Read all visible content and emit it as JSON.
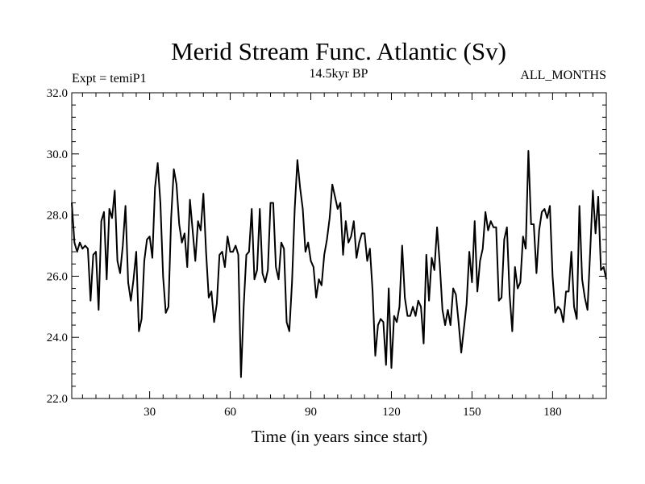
{
  "chart_data": {
    "type": "line",
    "title": "Merid Stream Func. Atlantic (Sv)",
    "left_label": "Expt = temiP1",
    "center_label": "14.5kyr BP",
    "right_label": "ALL_MONTHS",
    "xlabel": "Time (in years since start)",
    "ylabel": "",
    "xlim": [
      1,
      200
    ],
    "ylim": [
      22.0,
      32.0
    ],
    "xticks": [
      30,
      60,
      90,
      120,
      150,
      180
    ],
    "xtick_labels": [
      "30",
      "60",
      "90",
      "120",
      "150",
      "180"
    ],
    "yticks": [
      22,
      24,
      26,
      28,
      30,
      32
    ],
    "ytick_labels": [
      "22.0",
      "24.0",
      "26.0",
      "28.0",
      "30.0",
      "32.0"
    ],
    "grid": false,
    "series": [
      {
        "name": "Merid Stream Func. Atlantic",
        "color": "#000000",
        "x": [
          1,
          2,
          3,
          4,
          5,
          6,
          7,
          8,
          9,
          10,
          11,
          12,
          13,
          14,
          15,
          16,
          17,
          18,
          19,
          20,
          21,
          22,
          23,
          24,
          25,
          26,
          27,
          28,
          29,
          30,
          31,
          32,
          33,
          34,
          35,
          36,
          37,
          38,
          39,
          40,
          41,
          42,
          43,
          44,
          45,
          46,
          47,
          48,
          49,
          50,
          51,
          52,
          53,
          54,
          55,
          56,
          57,
          58,
          59,
          60,
          61,
          62,
          63,
          64,
          65,
          66,
          67,
          68,
          69,
          70,
          71,
          72,
          73,
          74,
          75,
          76,
          77,
          78,
          79,
          80,
          81,
          82,
          83,
          84,
          85,
          86,
          87,
          88,
          89,
          90,
          91,
          92,
          93,
          94,
          95,
          96,
          97,
          98,
          99,
          100,
          101,
          102,
          103,
          104,
          105,
          106,
          107,
          108,
          109,
          110,
          111,
          112,
          113,
          114,
          115,
          116,
          117,
          118,
          119,
          120,
          121,
          122,
          123,
          124,
          125,
          126,
          127,
          128,
          129,
          130,
          131,
          132,
          133,
          134,
          135,
          136,
          137,
          138,
          139,
          140,
          141,
          142,
          143,
          144,
          145,
          146,
          147,
          148,
          149,
          150,
          151,
          152,
          153,
          154,
          155,
          156,
          157,
          158,
          159,
          160,
          161,
          162,
          163,
          164,
          165,
          166,
          167,
          168,
          169,
          170,
          171,
          172,
          173,
          174,
          175,
          176,
          177,
          178,
          179,
          180,
          181,
          182,
          183,
          184,
          185,
          186,
          187,
          188,
          189,
          190,
          191,
          192,
          193,
          194,
          195,
          196,
          197,
          198,
          199,
          200
        ],
        "values": [
          28.4,
          27.1,
          26.8,
          27.1,
          26.9,
          27.0,
          26.9,
          25.2,
          26.7,
          26.8,
          24.9,
          27.8,
          28.1,
          25.9,
          28.2,
          27.9,
          28.8,
          26.5,
          26.1,
          27.0,
          28.3,
          25.8,
          25.2,
          25.9,
          26.8,
          24.2,
          24.6,
          26.5,
          27.2,
          27.3,
          26.6,
          28.9,
          29.7,
          28.4,
          26.0,
          24.8,
          25.0,
          27.9,
          29.5,
          29.0,
          27.7,
          27.1,
          27.4,
          26.3,
          28.5,
          27.5,
          26.5,
          27.8,
          27.5,
          28.7,
          26.8,
          25.3,
          25.5,
          24.5,
          25.1,
          26.7,
          26.8,
          26.3,
          27.3,
          26.8,
          26.8,
          27.0,
          26.7,
          22.7,
          25.0,
          26.7,
          26.8,
          28.2,
          25.9,
          26.2,
          28.2,
          26.1,
          25.8,
          26.2,
          28.4,
          28.4,
          26.3,
          25.9,
          27.1,
          26.9,
          24.5,
          24.2,
          25.8,
          28.2,
          29.8,
          28.9,
          28.2,
          26.8,
          27.1,
          26.5,
          26.3,
          25.3,
          25.9,
          25.7,
          26.7,
          27.2,
          27.9,
          29.0,
          28.6,
          28.2,
          28.4,
          26.7,
          27.8,
          27.1,
          27.3,
          27.8,
          26.6,
          27.1,
          27.4,
          27.4,
          26.5,
          26.9,
          25.5,
          23.4,
          24.4,
          24.6,
          24.5,
          23.1,
          25.6,
          23.0,
          24.7,
          24.5,
          25.0,
          27.0,
          25.3,
          24.7,
          24.7,
          25.0,
          24.7,
          25.2,
          25.0,
          23.8,
          26.7,
          25.2,
          26.6,
          26.2,
          27.6,
          26.4,
          24.9,
          24.4,
          24.9,
          24.4,
          25.6,
          25.4,
          24.5,
          23.5,
          24.3,
          25.1,
          26.8,
          25.8,
          27.8,
          25.5,
          26.5,
          26.9,
          28.1,
          27.5,
          27.8,
          27.6,
          27.6,
          25.2,
          25.3,
          27.2,
          27.6,
          25.4,
          24.2,
          26.3,
          25.6,
          25.8,
          27.3,
          26.9,
          30.1,
          27.7,
          27.7,
          26.1,
          27.5,
          28.1,
          28.2,
          27.9,
          28.3,
          26.0,
          24.8,
          25.0,
          24.9,
          24.5,
          25.5,
          25.5,
          26.8,
          25.0,
          24.6,
          28.3,
          25.9,
          25.3,
          24.9,
          26.8,
          28.8,
          27.4,
          28.6,
          26.2,
          26.3,
          25.9
        ]
      }
    ]
  }
}
